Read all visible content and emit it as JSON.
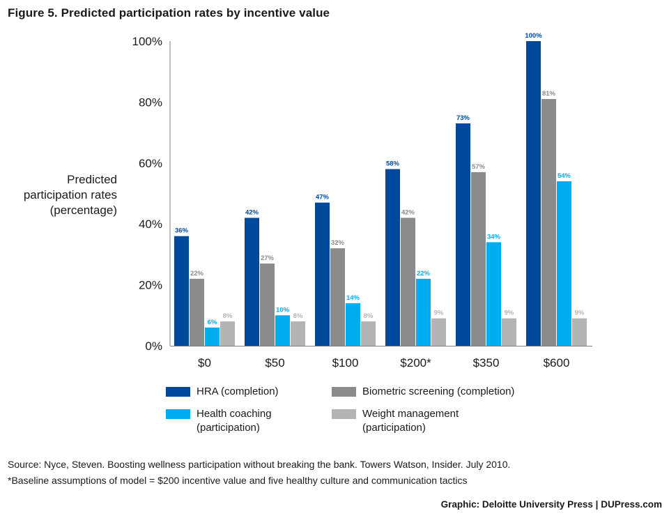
{
  "title": "Figure 5. Predicted participation rates by incentive value",
  "ylabel": [
    "Predicted",
    "participation rates",
    "(percentage)"
  ],
  "colors": {
    "hra": "#00489a",
    "biometric": "#8a8b8d",
    "coaching": "#00aeef",
    "weight": "#b3b4b6"
  },
  "chart_data": {
    "type": "bar",
    "categories": [
      "$0",
      "$50",
      "$100",
      "$200*",
      "$350",
      "$600"
    ],
    "series": [
      {
        "name": "HRA (completion)",
        "values": [
          36,
          42,
          47,
          58,
          73,
          100
        ],
        "labels": [
          "36%",
          "42%",
          "47%",
          "58%",
          "73%",
          "100%"
        ],
        "color": "#00489a",
        "label_color": "#00489a"
      },
      {
        "name": "Biometric screening (completion)",
        "values": [
          22,
          27,
          32,
          42,
          57,
          81
        ],
        "labels": [
          "22%",
          "27%",
          "32%",
          "42%",
          "57%",
          "81%"
        ],
        "color": "#8a8b8d",
        "label_color": "#8a8b8d"
      },
      {
        "name": "Health coaching (participation)",
        "values": [
          6,
          10,
          14,
          22,
          34,
          54
        ],
        "labels": [
          "6%",
          "10%",
          "14%",
          "22%",
          "34%",
          "54%"
        ],
        "color": "#00aeef",
        "label_color": "#00aeef"
      },
      {
        "name": "Weight management (participation)",
        "values": [
          8,
          8,
          8,
          9,
          9,
          9
        ],
        "labels": [
          "8%",
          "8%",
          "8%",
          "9%",
          "9%",
          "9%"
        ],
        "color": "#b3b4b6",
        "label_color": "#b3b4b6"
      }
    ],
    "yticks": [
      "0%",
      "20%",
      "40%",
      "60%",
      "80%",
      "100%"
    ],
    "ylim": [
      0,
      100
    ],
    "grid": false,
    "legend_position": "bottom"
  },
  "legend": {
    "hra": [
      "HRA (completion)"
    ],
    "biometric": [
      "Biometric screening (completion)"
    ],
    "coaching": [
      "Health coaching",
      "(participation)"
    ],
    "weight": [
      "Weight management",
      "(participation)"
    ]
  },
  "source_lines": [
    "Source: Nyce, Steven. Boosting wellness participation without breaking the bank. Towers Watson, Insider. July 2010.",
    "*Baseline assumptions of model = $200 incentive value and five healthy culture and communication tactics"
  ],
  "credit": "Graphic: Deloitte University Press  |  DUPress.com"
}
